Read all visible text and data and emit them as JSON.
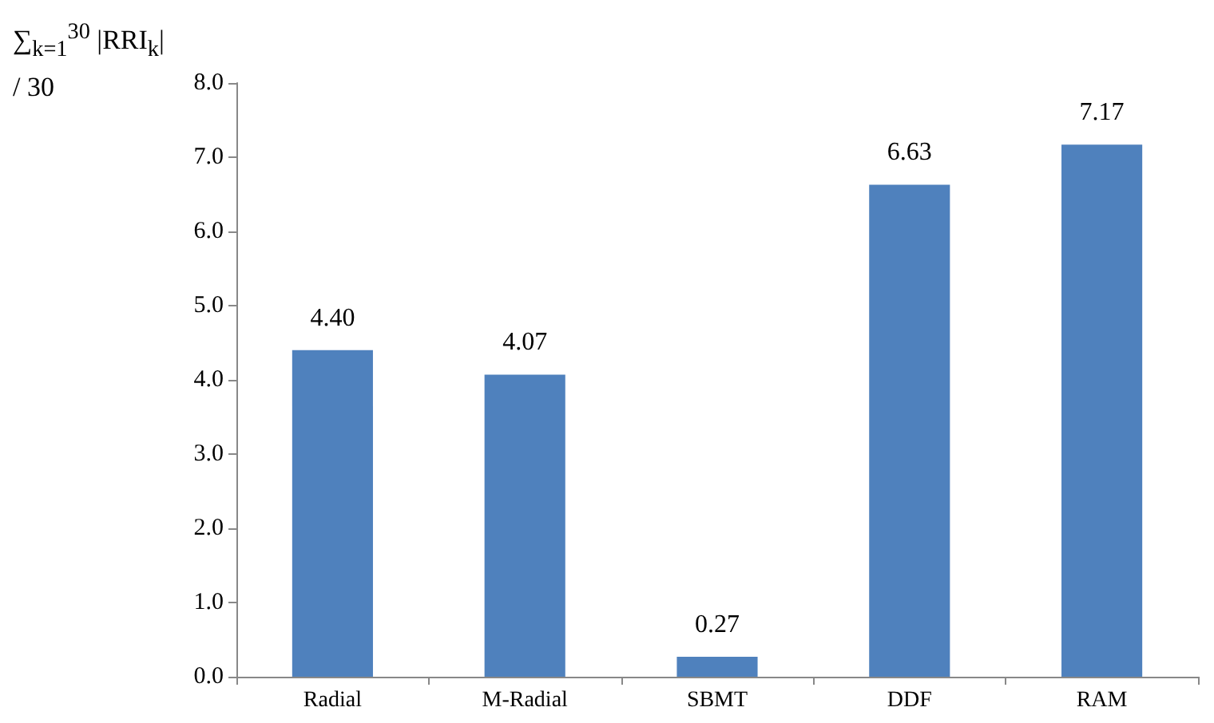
{
  "chart_data": {
    "type": "bar",
    "ylabel": "∑$_{k=1}$$^{30}$ |RRI$_{k}$| / 30",
    "categories": [
      "Radial",
      "M-Radial",
      "SBMT",
      "DDF",
      "RAM"
    ],
    "values": [
      4.4,
      4.07,
      0.27,
      6.63,
      7.17
    ],
    "value_labels": [
      "4.40",
      "4.07",
      "0.27",
      "6.63",
      "7.17"
    ],
    "color": "#4f81bd",
    "ylim": [
      0,
      8
    ],
    "yticks": [
      {
        "value": 0,
        "label": "0.0"
      },
      {
        "value": 1,
        "label": "1.0"
      },
      {
        "value": 2,
        "label": "2.0"
      },
      {
        "value": 3,
        "label": "3.0"
      },
      {
        "value": 4,
        "label": "4.0"
      },
      {
        "value": 5,
        "label": "5.0"
      },
      {
        "value": 6,
        "label": "6.0"
      },
      {
        "value": 7,
        "label": "7.0"
      },
      {
        "value": 8,
        "label": "8.0"
      }
    ],
    "grid": false
  }
}
